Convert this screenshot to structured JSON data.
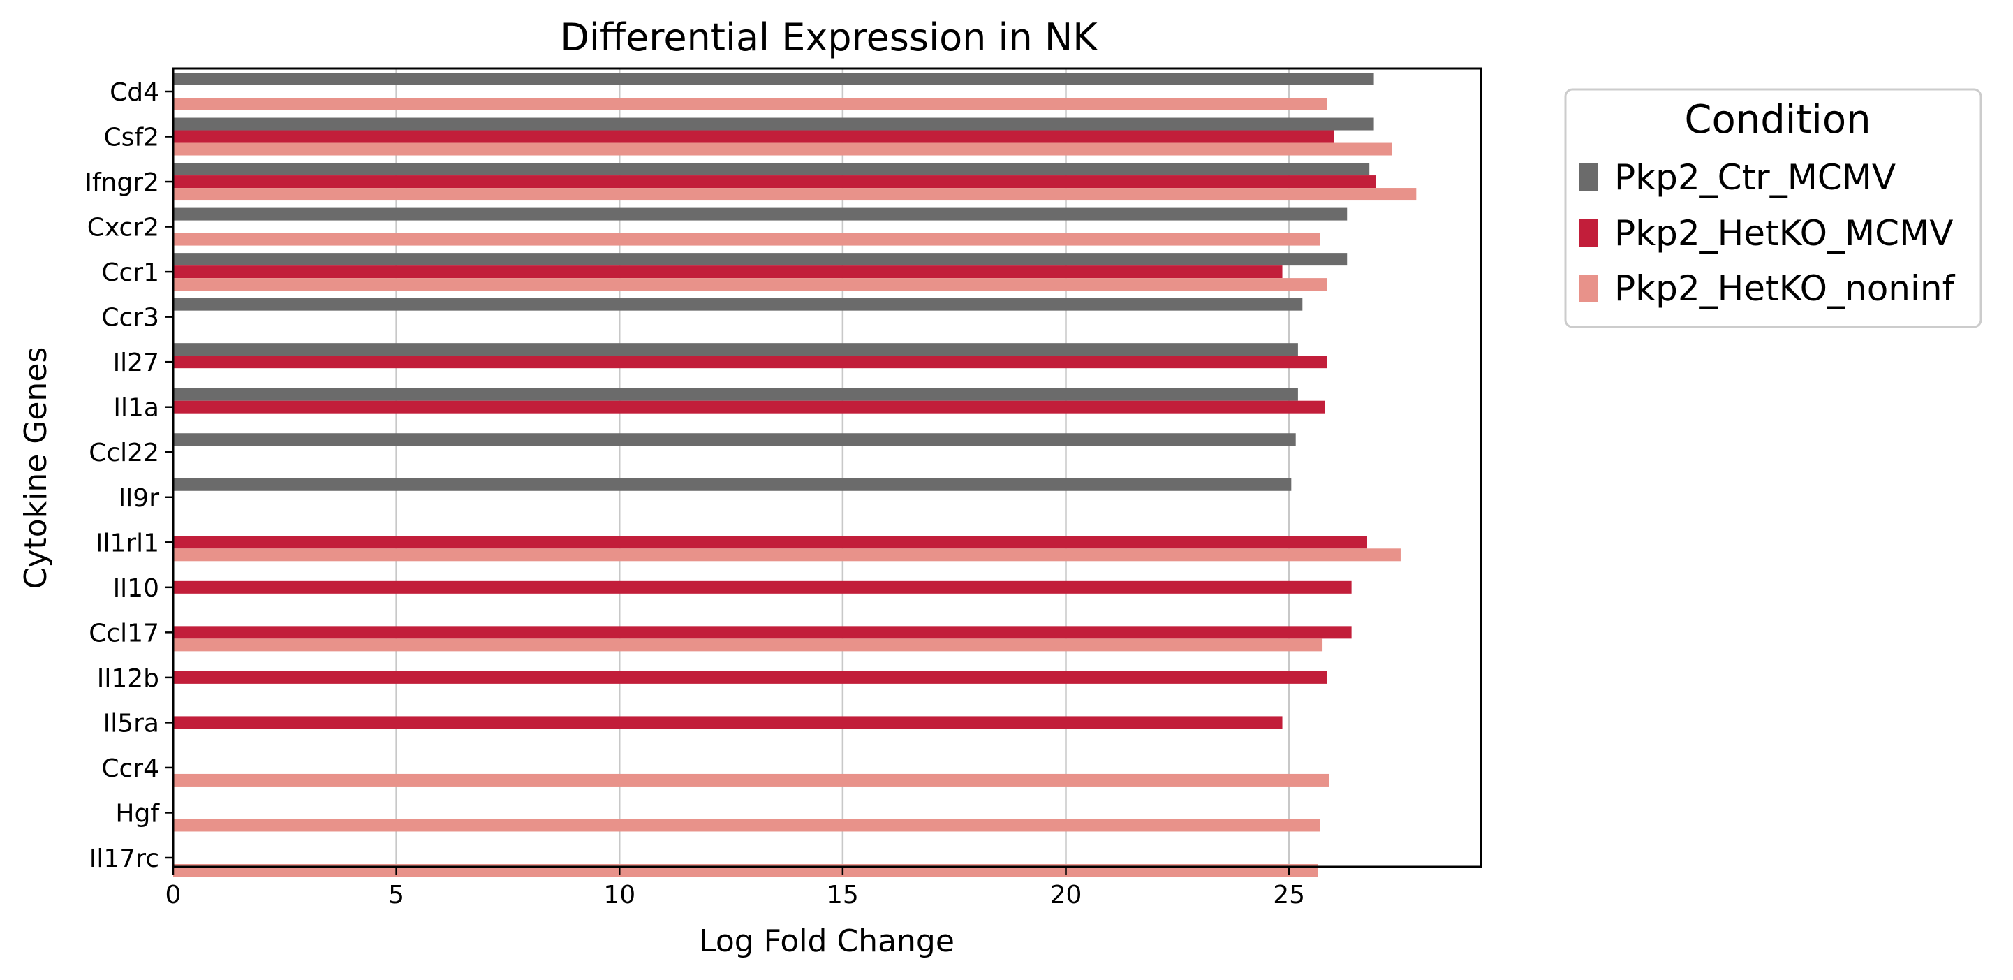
{
  "chart_data": {
    "type": "bar",
    "orientation": "horizontal",
    "title": "Differential Expression in NK",
    "xlabel": "Log Fold Change",
    "ylabel": "Cytokine Genes",
    "xlim": [
      0,
      29.3
    ],
    "xticks": [
      0,
      5,
      10,
      15,
      20,
      25
    ],
    "grid": "vertical",
    "legend": {
      "title": "Condition",
      "placement": "outside-top-right"
    },
    "categories": [
      "Cd4",
      "Csf2",
      "Ifngr2",
      "Cxcr2",
      "Ccr1",
      "Ccr3",
      "Il27",
      "Il1a",
      "Ccl22",
      "Il9r",
      "Il1rl1",
      "Il10",
      "Ccl17",
      "Il12b",
      "Il5ra",
      "Ccr4",
      "Hgf",
      "Il17rc"
    ],
    "series": [
      {
        "name": "Pkp2_Ctr_MCMV",
        "color": "#6b6b6b",
        "values": [
          26.9,
          26.9,
          26.8,
          26.3,
          26.3,
          25.3,
          25.2,
          25.2,
          25.15,
          25.05,
          null,
          null,
          null,
          null,
          null,
          null,
          null,
          null
        ]
      },
      {
        "name": "Pkp2_HetKO_MCMV",
        "color": "#c21e3a",
        "values": [
          null,
          26.0,
          26.95,
          null,
          24.85,
          null,
          25.85,
          25.8,
          null,
          null,
          26.75,
          26.4,
          26.4,
          25.85,
          24.85,
          null,
          null,
          null
        ]
      },
      {
        "name": "Pkp2_HetKO_noninf",
        "color": "#e8928a",
        "values": [
          25.85,
          27.3,
          27.85,
          25.7,
          25.85,
          null,
          null,
          null,
          null,
          null,
          27.5,
          null,
          25.75,
          null,
          null,
          25.9,
          25.7,
          25.65
        ]
      }
    ]
  }
}
